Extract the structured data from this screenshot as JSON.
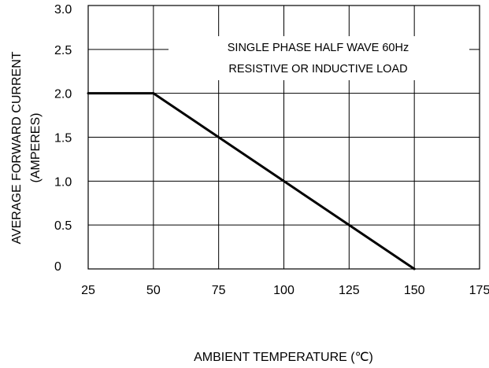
{
  "chart_data": {
    "type": "line",
    "title": "",
    "xlabel": "AMBIENT TEMPERATURE (℃)",
    "ylabel": [
      "AVERAGE FORWARD CURRENT",
      "(AMPERES)"
    ],
    "annotation": [
      "SINGLE PHASE HALF WAVE 60Hz",
      "RESISTIVE OR INDUCTIVE LOAD"
    ],
    "xlim": [
      25,
      175
    ],
    "ylim": [
      0,
      3.0
    ],
    "x_ticks": [
      25,
      50,
      75,
      100,
      125,
      150,
      175
    ],
    "x_tick_labels": [
      "25",
      "50",
      "75",
      "100",
      "125",
      "150",
      "175"
    ],
    "y_ticks": [
      0,
      0.5,
      1.0,
      1.5,
      2.0,
      2.5,
      3.0
    ],
    "y_tick_labels": [
      "0",
      "0.5",
      "1.0",
      "1.5",
      "2.0",
      "2.5",
      "3.0"
    ],
    "grid": true,
    "series": [
      {
        "x": [
          25,
          50,
          150
        ],
        "y": [
          2.0,
          2.0,
          0
        ]
      }
    ],
    "colors": {
      "line": "#000000",
      "grid": "#000000",
      "background": "#ffffff"
    }
  }
}
